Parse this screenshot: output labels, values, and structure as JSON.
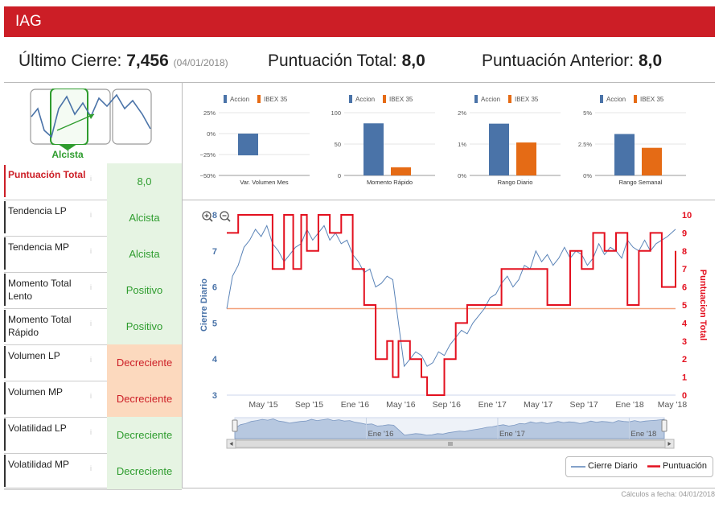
{
  "header": {
    "title": "IAG"
  },
  "summary": {
    "cierre_label": "Último Cierre:",
    "cierre_value": "7,456",
    "cierre_date": "(04/01/2018)",
    "total_label": "Puntuación Total:",
    "total_value": "8,0",
    "anterior_label": "Puntuación Anterior:",
    "anterior_value": "8,0"
  },
  "trend_icon": {
    "label": "Alcista"
  },
  "indicators": [
    {
      "label": "Puntuación Total",
      "value": "8,0",
      "style": "green",
      "highlight": true
    },
    {
      "label": "Tendencia LP",
      "value": "Alcista",
      "style": "green",
      "highlight": false
    },
    {
      "label": "Tendencia MP",
      "value": "Alcista",
      "style": "green",
      "highlight": false
    },
    {
      "label": "Momento Total Lento",
      "value": "Positivo",
      "style": "green",
      "highlight": false
    },
    {
      "label": "Momento Total Rápido",
      "value": "Positivo",
      "style": "green",
      "highlight": false
    },
    {
      "label": "Volumen LP",
      "value": "Decreciente",
      "style": "orange",
      "highlight": false
    },
    {
      "label": "Volumen MP",
      "value": "Decreciente",
      "style": "orange",
      "highlight": false
    },
    {
      "label": "Volatilidad LP",
      "value": "Decreciente",
      "style": "green",
      "highlight": false
    },
    {
      "label": "Volatilidad MP",
      "value": "Decreciente",
      "style": "green",
      "highlight": false
    }
  ],
  "info_icon": "i",
  "colors": {
    "accion": "#4a73a8",
    "ibex": "#e56b15",
    "score": "#e3101f",
    "price": "#5b84b8",
    "green": "#2e9c2e",
    "red": "#cc1e26"
  },
  "chart_data": [
    {
      "type": "bar",
      "title": "Var. Volumen Mes",
      "legend": [
        "Accion",
        "IBEX 35"
      ],
      "ticks": [
        "25%",
        "0%",
        "−25%",
        "−50%"
      ],
      "ylim": [
        -50,
        25
      ],
      "values": [
        -26,
        0
      ]
    },
    {
      "type": "bar",
      "title": "Momento Rápido",
      "legend": [
        "Accion",
        "IBEX 35"
      ],
      "ticks": [
        "100",
        "50",
        "0"
      ],
      "ylim": [
        0,
        100
      ],
      "values": [
        83,
        13
      ]
    },
    {
      "type": "bar",
      "title": "Rango Diario",
      "legend": [
        "Accion",
        "IBEX 35"
      ],
      "ticks": [
        "2%",
        "1%",
        "0%"
      ],
      "ylim": [
        0,
        2
      ],
      "values": [
        1.65,
        1.05
      ]
    },
    {
      "type": "bar",
      "title": "Rango Semanal",
      "legend": [
        "Accion",
        "IBEX 35"
      ],
      "ticks": [
        "5%",
        "2.5%",
        "0%"
      ],
      "ylim": [
        0,
        5
      ],
      "values": [
        3.3,
        2.2
      ]
    },
    {
      "type": "line",
      "title": "",
      "ylabel_left": "Cierre Diario",
      "ylabel_right": "Puntuacion Total",
      "ylim_left": [
        3,
        8
      ],
      "ylim_right": [
        0,
        10
      ],
      "left_ticks": [
        "8",
        "7",
        "6",
        "5",
        "4",
        "3"
      ],
      "right_ticks": [
        "10",
        "9",
        "8",
        "7",
        "6",
        "5",
        "4",
        "3",
        "2",
        "1",
        "0"
      ],
      "x_ticks": [
        "May '15",
        "Sep '15",
        "Ene '16",
        "May '16",
        "Sep '16",
        "Ene '17",
        "May '17",
        "Sep '17",
        "Ene '18",
        "May '18"
      ],
      "navigator_ticks": [
        "Ene '16",
        "Ene '17",
        "Ene '18"
      ],
      "reference_score": 4.8,
      "series": [
        {
          "name": "Cierre Diario",
          "x_months": [
            0,
            0.5,
            1,
            1.5,
            2,
            2.5,
            3,
            3.5,
            4,
            4.5,
            5,
            5.5,
            6,
            6.5,
            7,
            7.5,
            8,
            8.5,
            9,
            9.5,
            10,
            10.5,
            11,
            11.5,
            12,
            12.5,
            13,
            13.5,
            14,
            14.5,
            15,
            15.5,
            16,
            16.5,
            17,
            17.5,
            18,
            18.5,
            19,
            19.5,
            20,
            20.5,
            21,
            21.5,
            22,
            22.5,
            23,
            23.5,
            24,
            24.5,
            25,
            25.5,
            26,
            26.5,
            27,
            27.5,
            28,
            28.5,
            29,
            29.5,
            30,
            30.5,
            31,
            31.5,
            32,
            32.5,
            33,
            33.5,
            34,
            34.5,
            35,
            35.5,
            36,
            36.5,
            37,
            37.5,
            38,
            38.5,
            39.2
          ],
          "values": [
            5.4,
            6.3,
            6.6,
            7.1,
            7.3,
            7.6,
            7.4,
            7.7,
            7.2,
            7.0,
            6.7,
            6.9,
            7.1,
            7.2,
            7.6,
            7.3,
            7.5,
            7.7,
            7.3,
            7.5,
            7.2,
            7.3,
            6.9,
            6.7,
            6.4,
            6.5,
            6.0,
            6.1,
            6.3,
            6.2,
            5.0,
            3.8,
            4.0,
            4.2,
            4.1,
            3.8,
            3.9,
            4.2,
            4.1,
            4.4,
            4.6,
            4.8,
            4.7,
            5.0,
            5.2,
            5.4,
            5.7,
            5.8,
            6.1,
            6.3,
            6.0,
            6.2,
            6.6,
            6.5,
            7.0,
            6.7,
            6.9,
            6.6,
            6.8,
            7.1,
            6.8,
            7.0,
            6.9,
            6.6,
            6.8,
            7.2,
            6.9,
            7.1,
            7.0,
            6.8,
            7.3,
            7.1,
            7.0,
            7.3,
            7.0,
            7.2,
            7.3,
            7.4,
            7.6
          ]
        },
        {
          "name": "Puntuación",
          "x_months": [
            0,
            1,
            1.5,
            3,
            4,
            5,
            5.8,
            6.5,
            7,
            8,
            9,
            10,
            11,
            12,
            13,
            14,
            14.5,
            15,
            16,
            17,
            17.5,
            18.5,
            19,
            20,
            21,
            22,
            23,
            24,
            25,
            26,
            28,
            30,
            31,
            32,
            33,
            34,
            35,
            36,
            37,
            38,
            39.2
          ],
          "values": [
            9,
            10,
            10,
            10,
            7,
            10,
            7,
            10,
            8,
            10,
            9,
            10,
            7,
            5,
            2,
            3,
            1,
            3,
            2,
            1,
            0,
            0,
            2,
            4,
            5,
            5,
            5,
            7,
            7,
            7,
            5,
            8,
            7,
            9,
            8,
            9,
            5,
            8,
            9,
            6,
            8
          ]
        }
      ]
    }
  ],
  "main_legend": {
    "price": "Cierre Diario",
    "score": "Puntuación"
  },
  "footer": "Cálculos a fecha: 04/01/2018"
}
